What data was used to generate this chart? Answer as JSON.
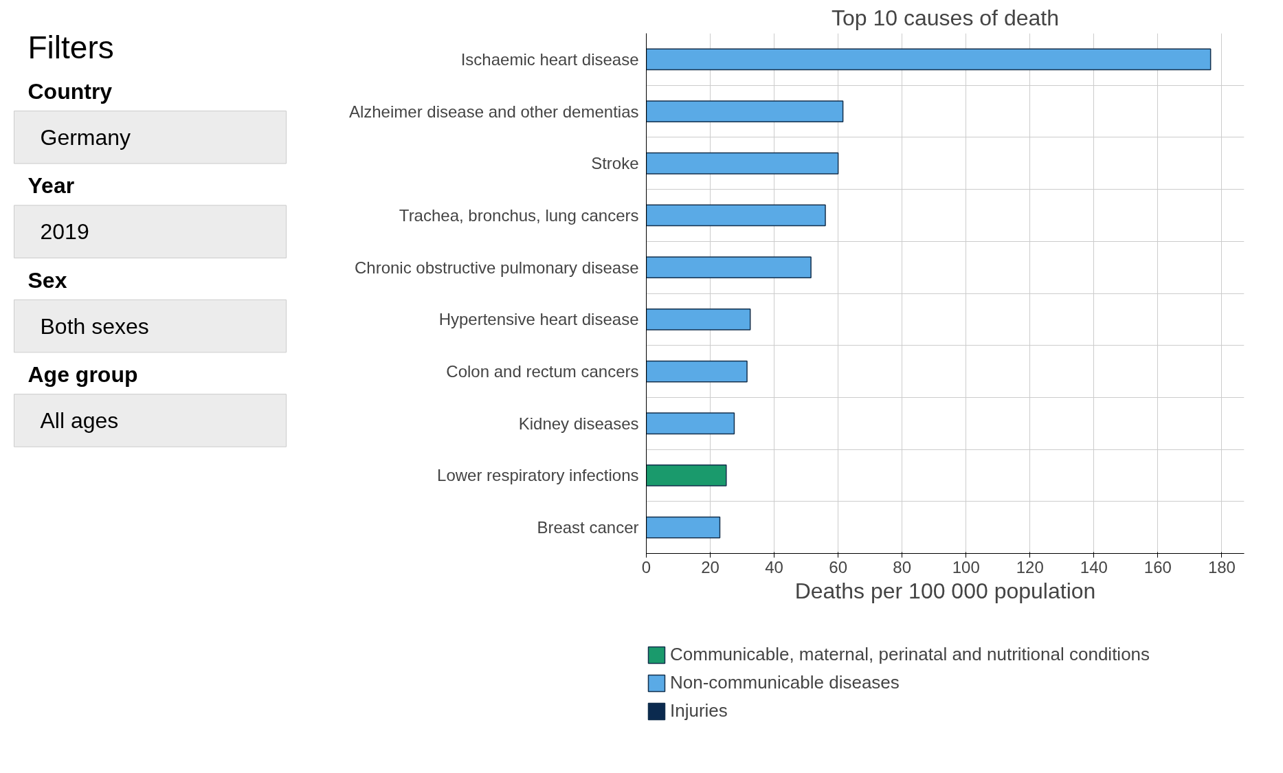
{
  "chart_data": {
    "type": "bar",
    "orientation": "horizontal",
    "title": "Top 10 causes of death",
    "xlabel": "Deaths per 100 000 population",
    "categories": [
      "Ischaemic heart disease",
      "Alzheimer disease and other dementias",
      "Stroke",
      "Trachea, bronchus, lung cancers",
      "Chronic obstructive pulmonary disease",
      "Hypertensive heart disease",
      "Colon and rectum cancers",
      "Kidney diseases",
      "Lower respiratory infections",
      "Breast cancer"
    ],
    "series": [
      {
        "name": "Communicable, maternal, perinatal and nutritional conditions",
        "color": "#1a9a6c",
        "values": [
          null,
          null,
          null,
          null,
          null,
          null,
          null,
          null,
          25,
          null
        ]
      },
      {
        "name": "Non-communicable diseases",
        "color": "#5aaae6",
        "values": [
          176.5,
          61.5,
          60,
          56,
          51.5,
          32.5,
          31.5,
          27.5,
          null,
          23
        ]
      },
      {
        "name": "Injuries",
        "color": "#0b2a4f",
        "values": [
          null,
          null,
          null,
          null,
          null,
          null,
          null,
          null,
          null,
          null
        ]
      }
    ],
    "xlim": [
      0,
      187
    ],
    "xticks": [
      0,
      20,
      40,
      60,
      80,
      100,
      120,
      140,
      160,
      180
    ],
    "grid": true,
    "legend": "bottom",
    "annotations": [
      "Filters",
      "Country",
      "Germany",
      "Year",
      "2019",
      "Sex",
      "Both sexes",
      "Age group",
      "All ages"
    ]
  }
}
